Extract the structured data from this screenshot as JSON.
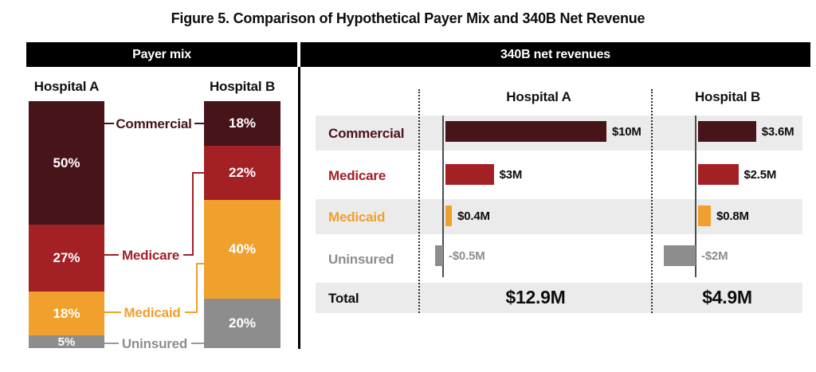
{
  "title": "Figure 5. Comparison of Hypothetical Payer Mix and 340B Net Revenue",
  "headers": {
    "payer_mix": "Payer mix",
    "net_revenues": "340B net revenues"
  },
  "colors": {
    "commercial": "#47141a",
    "medicare": "#a32025",
    "medicaid": "#f0a02c",
    "uninsured": "#8d8d8d",
    "row_shade": "#ebebeb",
    "header_band_bg": "#000000",
    "header_band_text": "#ffffff",
    "axis_line": "#4d4d4d"
  },
  "chart_data": [
    {
      "type": "bar",
      "subtype": "stacked-100pct-column",
      "title": "Payer mix",
      "categories": [
        "Commercial",
        "Medicare",
        "Medicaid",
        "Uninsured"
      ],
      "groups": [
        {
          "name": "Hospital A",
          "values": [
            50,
            27,
            18,
            5
          ],
          "labels": [
            "50%",
            "27%",
            "18%",
            "5%"
          ]
        },
        {
          "name": "Hospital B",
          "values": [
            18,
            22,
            40,
            20
          ],
          "labels": [
            "18%",
            "22%",
            "40%",
            "20%"
          ]
        }
      ],
      "ylim": [
        0,
        100
      ],
      "grid": false,
      "legend_position": "between-columns"
    },
    {
      "type": "bar",
      "subtype": "horizontal-grouped",
      "title": "340B net revenues",
      "unit": "$M",
      "categories": [
        "Commercial",
        "Medicare",
        "Medicaid",
        "Uninsured"
      ],
      "groups": [
        {
          "name": "Hospital A",
          "values": [
            10,
            3,
            0.4,
            -0.5
          ],
          "labels": [
            "$10M",
            "$3M",
            "$0.4M",
            "-$0.5M"
          ],
          "total": "$12.9M"
        },
        {
          "name": "Hospital B",
          "values": [
            3.6,
            2.5,
            0.8,
            -2
          ],
          "labels": [
            "$3.6M",
            "$2.5M",
            "$0.8M",
            "-$2M"
          ],
          "total": "$4.9M"
        }
      ],
      "total_label": "Total",
      "xlim": [
        -2.5,
        10.5
      ],
      "grid": false
    }
  ]
}
